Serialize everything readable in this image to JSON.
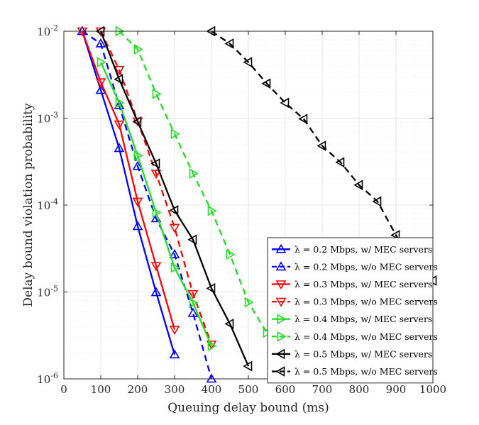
{
  "chart_data": {
    "type": "line",
    "xlabel": "Queuing delay bound (ms)",
    "ylabel": "Delay bound violation probability",
    "xlim": [
      0,
      1000
    ],
    "ylim": [
      1e-06,
      0.01
    ],
    "yscale": "log",
    "grid": true,
    "legend_position": "bottom-right",
    "x_ticks": [
      "0",
      "100",
      "200",
      "300",
      "400",
      "500",
      "600",
      "700",
      "800",
      "900",
      "1000"
    ],
    "y_ticks": [
      {
        "base": "10",
        "exp": "-6",
        "value": 1e-06
      },
      {
        "base": "10",
        "exp": "-5",
        "value": 1e-05
      },
      {
        "base": "10",
        "exp": "-4",
        "value": 0.0001
      },
      {
        "base": "10",
        "exp": "-3",
        "value": 0.001
      },
      {
        "base": "10",
        "exp": "-2",
        "value": 0.01
      }
    ],
    "series": [
      {
        "name": "λ = 0.2 Mbps, w/ MEC servers",
        "color": "#0000ff",
        "dash": "solid",
        "marker": "triangle-up",
        "x": [
          50,
          100,
          150,
          200,
          250,
          300
        ],
        "y": [
          0.01,
          0.0021,
          0.00045,
          5.7e-05,
          9.9e-06,
          1.9e-06
        ]
      },
      {
        "name": "λ = 0.2 Mbps, w/o MEC servers",
        "color": "#0000ff",
        "dash": "dashed",
        "marker": "triangle-up",
        "x": [
          50,
          100,
          150,
          200,
          250,
          300,
          350,
          400
        ],
        "y": [
          0.01,
          0.0072,
          0.0014,
          0.00028,
          7e-05,
          2.7e-05,
          5.7e-06,
          1e-06
        ]
      },
      {
        "name": "λ = 0.3 Mbps, w/ MEC servers",
        "color": "#ff0000",
        "dash": "solid",
        "marker": "triangle-down",
        "x": [
          50,
          100,
          150,
          200,
          250,
          300
        ],
        "y": [
          0.01,
          0.0026,
          0.00085,
          0.00011,
          2e-05,
          3.7e-06
        ]
      },
      {
        "name": "λ = 0.3 Mbps, w/o MEC servers",
        "color": "#ff0000",
        "dash": "dashed",
        "marker": "triangle-down",
        "x": [
          100,
          150,
          200,
          250,
          300,
          350,
          400
        ],
        "y": [
          0.01,
          0.0036,
          0.00092,
          0.00023,
          5.5e-05,
          9.5e-06,
          2.5e-06
        ]
      },
      {
        "name": "λ = 0.4 Mbps, w/ MEC servers",
        "color": "#22dd22",
        "dash": "solid",
        "marker": "triangle-right",
        "x": [
          100,
          150,
          200,
          250,
          300,
          350,
          400
        ],
        "y": [
          0.0044,
          0.0015,
          0.00037,
          8.2e-05,
          1.9e-05,
          7.5e-06,
          2.4e-06
        ]
      },
      {
        "name": "λ = 0.4 Mbps, w/o MEC servers",
        "color": "#22dd22",
        "dash": "dashed",
        "marker": "triangle-right",
        "x": [
          150,
          200,
          250,
          300,
          350,
          400,
          450,
          500,
          550
        ],
        "y": [
          0.01,
          0.0062,
          0.0019,
          0.00066,
          0.00023,
          8.6e-05,
          2.7e-05,
          7.6e-06,
          3.4e-06
        ]
      },
      {
        "name": "λ = 0.5 Mbps, w/ MEC servers",
        "color": "#000000",
        "dash": "solid",
        "marker": "triangle-left",
        "x": [
          100,
          150,
          200,
          250,
          300,
          350,
          400,
          450,
          500
        ],
        "y": [
          0.01,
          0.0028,
          0.00091,
          0.0003,
          8.7e-05,
          4e-05,
          1.1e-05,
          4.3e-06,
          1.4e-06
        ]
      },
      {
        "name": "λ = 0.5 Mbps, w/o MEC servers",
        "color": "#000000",
        "dash": "dashed",
        "marker": "triangle-left",
        "x": [
          400,
          450,
          500,
          550,
          600,
          650,
          700,
          750,
          800,
          850,
          900,
          950,
          1000
        ],
        "y": [
          0.01,
          0.0072,
          0.0044,
          0.0025,
          0.0015,
          0.00098,
          0.00048,
          0.00031,
          0.00017,
          0.00011,
          4.5e-05,
          2e-05,
          1.35e-05
        ]
      }
    ]
  }
}
